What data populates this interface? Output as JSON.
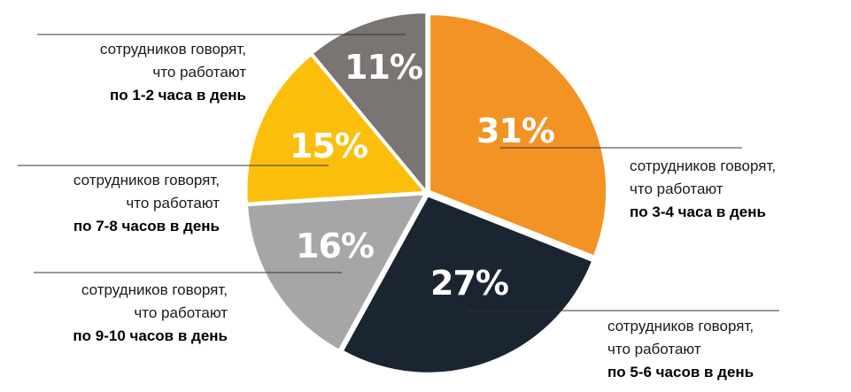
{
  "chart_data": {
    "type": "pie",
    "title": "",
    "slices": [
      {
        "value": 31,
        "label": "31%",
        "color": "#f39323",
        "text": [
          "сотрудников говорят,",
          "что работают",
          "по 3-4 часа в день"
        ]
      },
      {
        "value": 27,
        "label": "27%",
        "color": "#1b2431",
        "text": [
          "сотрудников говорят,",
          "что работают",
          "по 5-6 часов в день"
        ]
      },
      {
        "value": 16,
        "label": "16%",
        "color": "#a6a6a6",
        "text": [
          "сотрудников говорят,",
          "что работают",
          "по 9-10 часов в день"
        ]
      },
      {
        "value": 15,
        "label": "15%",
        "color": "#fbbf0b",
        "text": [
          "сотрудников говорят,",
          "что работают",
          "по 7-8 часов в день"
        ]
      },
      {
        "value": 11,
        "label": "11%",
        "color": "#7a7472",
        "text": [
          "сотрудников говорят,",
          "что работают",
          "по 1-2 часа в день"
        ]
      }
    ]
  }
}
